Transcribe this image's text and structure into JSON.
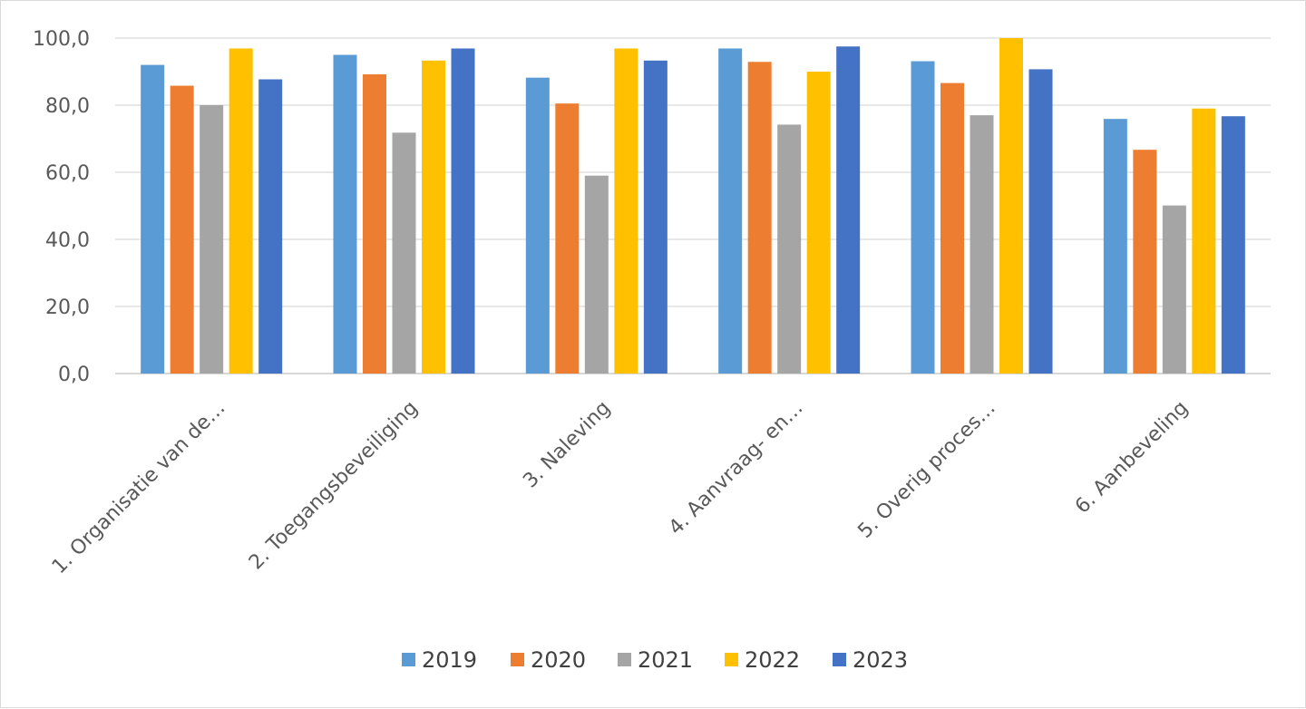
{
  "chart_data": {
    "type": "bar",
    "title": "",
    "xlabel": "",
    "ylabel": "",
    "categories": [
      "1. Organisatie van de…",
      "2. Toegangsbeveiliging",
      "3. Naleving",
      "4. Aanvraag- en…",
      "5. Overig proces…",
      "6. Aanbeveling"
    ],
    "series": [
      {
        "name": "2019",
        "color": "#5b9bd5",
        "values": [
          92.0,
          95.0,
          88.2,
          96.9,
          93.1,
          75.9
        ]
      },
      {
        "name": "2020",
        "color": "#ed7d31",
        "values": [
          85.8,
          89.2,
          80.5,
          92.9,
          86.6,
          66.7
        ]
      },
      {
        "name": "2021",
        "color": "#a5a5a5",
        "values": [
          80.0,
          71.8,
          59.0,
          74.2,
          77.0,
          50.1
        ]
      },
      {
        "name": "2022",
        "color": "#ffc000",
        "values": [
          96.9,
          93.3,
          96.9,
          90.0,
          100.0,
          79.0
        ]
      },
      {
        "name": "2023",
        "color": "#4472c4",
        "values": [
          87.7,
          96.9,
          93.3,
          97.5,
          90.7,
          76.7
        ]
      }
    ],
    "ylim": [
      0,
      100
    ],
    "yticks": [
      "0,0",
      "20,0",
      "40,0",
      "60,0",
      "80,0",
      "100,0"
    ],
    "grid": true,
    "legend": "bottom"
  }
}
